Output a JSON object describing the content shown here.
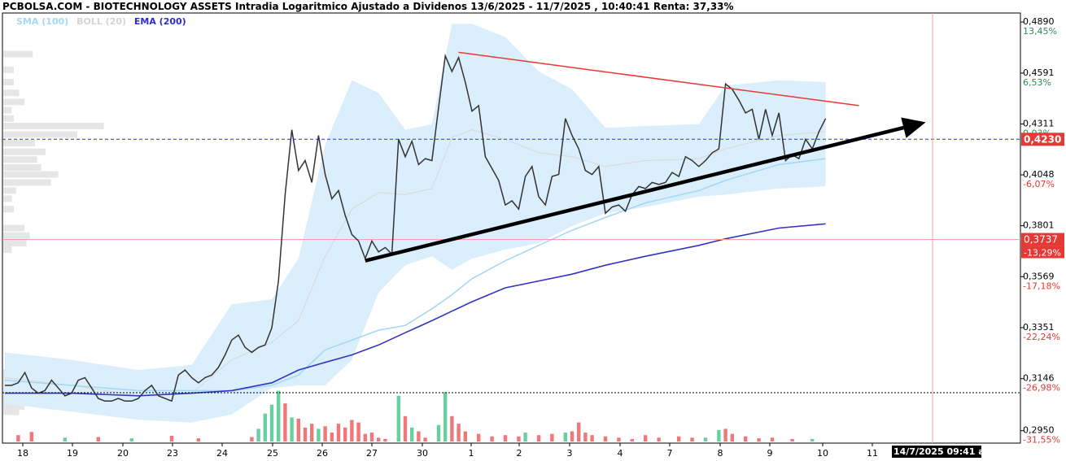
{
  "header": {
    "title": "PCBOLSA.COM - BIOTECHNOLOGY ASSETS Intradia Logaritmico Ajustado a Dividenos 13/6/2025 - 11/7/2025 , 10:40:41 Renta: 37,33%",
    "legend": [
      {
        "label": "SMA (100)",
        "color": "#a5d8f3"
      },
      {
        "label": "BOLL (20)",
        "color": "#d4d4d4"
      },
      {
        "label": "EMA (200)",
        "color": "#2e2ec8"
      }
    ]
  },
  "footer": {
    "date_tag": "14/7/2025 09:41 a"
  },
  "colors": {
    "price": "#333333",
    "bollinger_fill": "#dbeefb",
    "bollinger_mid": "#d8d8d8",
    "sma": "#a5d8f3",
    "ema": "#3434c4",
    "up_volume": "#66d19e",
    "down_volume": "#f07878",
    "resistance": "#e53935",
    "support": "#000000",
    "current_line": "#2030ff",
    "ref_line": "#f4a0a0"
  },
  "chart_data": {
    "type": "line",
    "scale": "log",
    "ylim": [
      0.2905,
      0.4945
    ],
    "x_tick_labels": [
      "18",
      "19",
      "20",
      "23",
      "24",
      "25",
      "26",
      "27",
      "30",
      "1",
      "2",
      "3",
      "4",
      "7",
      "8",
      "9",
      "10",
      "11"
    ],
    "y_tick_labels": [
      {
        "value": 0.489,
        "label": "0,4890",
        "pct": "13,45%",
        "pct_color": "#2e8b57"
      },
      {
        "value": 0.4591,
        "label": "0,4591",
        "pct": "6,53%",
        "pct_color": "#2e8b57"
      },
      {
        "value": 0.4311,
        "label": "0,4311",
        "pct": "0,03%",
        "pct_color": "#2e8b57"
      },
      {
        "value": 0.4048,
        "label": "0,4048",
        "pct": "-6,07%",
        "pct_color": "#e53935"
      },
      {
        "value": 0.3801,
        "label": "0,3801",
        "pct": "",
        "pct_color": "#e53935"
      },
      {
        "value": 0.3569,
        "label": "0,3569",
        "pct": "-17,18%",
        "pct_color": "#e53935"
      },
      {
        "value": 0.3351,
        "label": "0,3351",
        "pct": "-22,24%",
        "pct_color": "#e53935"
      },
      {
        "value": 0.3146,
        "label": "0,3146",
        "pct": "-26,98%",
        "pct_color": "#e53935"
      },
      {
        "value": 0.295,
        "label": "0,2950",
        "pct": "-31,55%",
        "pct_color": "#e53935"
      }
    ],
    "current_price": {
      "value": 0.423,
      "label": "0,4230"
    },
    "reference_price": {
      "value": 0.3737,
      "label": "0,3737",
      "pct": "-13,29%"
    },
    "price_series": [
      [
        0,
        0.312
      ],
      [
        1,
        0.312
      ],
      [
        2,
        0.313
      ],
      [
        3,
        0.317
      ],
      [
        4,
        0.311
      ],
      [
        5,
        0.309
      ],
      [
        6,
        0.31
      ],
      [
        7,
        0.314
      ],
      [
        8,
        0.311
      ],
      [
        9,
        0.308
      ],
      [
        10,
        0.309
      ],
      [
        11,
        0.314
      ],
      [
        12,
        0.315
      ],
      [
        13,
        0.311
      ],
      [
        14,
        0.307
      ],
      [
        15,
        0.306
      ],
      [
        16,
        0.306
      ],
      [
        17,
        0.307
      ],
      [
        18,
        0.306
      ],
      [
        19,
        0.306
      ],
      [
        20,
        0.307
      ],
      [
        21,
        0.31
      ],
      [
        22,
        0.312
      ],
      [
        23,
        0.308
      ],
      [
        24,
        0.307
      ],
      [
        25,
        0.306
      ],
      [
        26,
        0.316
      ],
      [
        27,
        0.318
      ],
      [
        28,
        0.315
      ],
      [
        29,
        0.313
      ],
      [
        30,
        0.315
      ],
      [
        31,
        0.316
      ],
      [
        32,
        0.319
      ],
      [
        33,
        0.324
      ],
      [
        34,
        0.33
      ],
      [
        35,
        0.332
      ],
      [
        36,
        0.327
      ],
      [
        37,
        0.325
      ],
      [
        38,
        0.327
      ],
      [
        39,
        0.328
      ],
      [
        40,
        0.335
      ],
      [
        41,
        0.355
      ],
      [
        42,
        0.395
      ],
      [
        43,
        0.428
      ],
      [
        44,
        0.407
      ],
      [
        45,
        0.412
      ],
      [
        46,
        0.401
      ],
      [
        47,
        0.425
      ],
      [
        48,
        0.405
      ],
      [
        49,
        0.393
      ],
      [
        50,
        0.397
      ],
      [
        51,
        0.385
      ],
      [
        52,
        0.376
      ],
      [
        53,
        0.373
      ],
      [
        54,
        0.365
      ],
      [
        55,
        0.373
      ],
      [
        56,
        0.368
      ],
      [
        57,
        0.37
      ],
      [
        58,
        0.367
      ],
      [
        59,
        0.423
      ],
      [
        60,
        0.414
      ],
      [
        61,
        0.422
      ],
      [
        62,
        0.41
      ],
      [
        63,
        0.413
      ],
      [
        64,
        0.412
      ],
      [
        65,
        0.44
      ],
      [
        66,
        0.469
      ],
      [
        67,
        0.46
      ],
      [
        68,
        0.468
      ],
      [
        69,
        0.454
      ],
      [
        70,
        0.438
      ],
      [
        71,
        0.441
      ],
      [
        72,
        0.414
      ],
      [
        73,
        0.408
      ],
      [
        74,
        0.402
      ],
      [
        75,
        0.39
      ],
      [
        76,
        0.392
      ],
      [
        77,
        0.388
      ],
      [
        78,
        0.404
      ],
      [
        79,
        0.409
      ],
      [
        80,
        0.394
      ],
      [
        81,
        0.39
      ],
      [
        82,
        0.404
      ],
      [
        83,
        0.405
      ],
      [
        84,
        0.434
      ],
      [
        85,
        0.425
      ],
      [
        86,
        0.418
      ],
      [
        87,
        0.407
      ],
      [
        88,
        0.405
      ],
      [
        89,
        0.409
      ],
      [
        90,
        0.386
      ],
      [
        91,
        0.389
      ],
      [
        92,
        0.39
      ],
      [
        93,
        0.387
      ],
      [
        94,
        0.395
      ],
      [
        95,
        0.399
      ],
      [
        96,
        0.398
      ],
      [
        97,
        0.401
      ],
      [
        98,
        0.4
      ],
      [
        99,
        0.401
      ],
      [
        100,
        0.406
      ],
      [
        101,
        0.404
      ],
      [
        102,
        0.414
      ],
      [
        103,
        0.412
      ],
      [
        104,
        0.409
      ],
      [
        105,
        0.412
      ],
      [
        106,
        0.416
      ],
      [
        107,
        0.418
      ],
      [
        108,
        0.453
      ],
      [
        109,
        0.45
      ],
      [
        110,
        0.444
      ],
      [
        111,
        0.437
      ],
      [
        112,
        0.439
      ],
      [
        113,
        0.423
      ],
      [
        114,
        0.439
      ],
      [
        115,
        0.425
      ],
      [
        116,
        0.437
      ],
      [
        117,
        0.412
      ],
      [
        118,
        0.415
      ],
      [
        119,
        0.413
      ],
      [
        120,
        0.423
      ],
      [
        121,
        0.418
      ],
      [
        122,
        0.427
      ],
      [
        123,
        0.434
      ]
    ],
    "boll_upper": [
      [
        0,
        0.325
      ],
      [
        10,
        0.322
      ],
      [
        20,
        0.318
      ],
      [
        28,
        0.32
      ],
      [
        34,
        0.345
      ],
      [
        40,
        0.347
      ],
      [
        44,
        0.365
      ],
      [
        48,
        0.42
      ],
      [
        52,
        0.455
      ],
      [
        56,
        0.448
      ],
      [
        60,
        0.428
      ],
      [
        64,
        0.431
      ],
      [
        67,
        0.488
      ],
      [
        70,
        0.488
      ],
      [
        75,
        0.48
      ],
      [
        80,
        0.46
      ],
      [
        85,
        0.45
      ],
      [
        90,
        0.429
      ],
      [
        96,
        0.43
      ],
      [
        104,
        0.431
      ],
      [
        108,
        0.452
      ],
      [
        116,
        0.455
      ],
      [
        123,
        0.454
      ]
    ],
    "boll_lower": [
      [
        0,
        0.305
      ],
      [
        10,
        0.302
      ],
      [
        20,
        0.299
      ],
      [
        28,
        0.298
      ],
      [
        34,
        0.301
      ],
      [
        40,
        0.311
      ],
      [
        44,
        0.312
      ],
      [
        48,
        0.312
      ],
      [
        52,
        0.322
      ],
      [
        56,
        0.35
      ],
      [
        60,
        0.362
      ],
      [
        64,
        0.366
      ],
      [
        67,
        0.36
      ],
      [
        70,
        0.365
      ],
      [
        75,
        0.369
      ],
      [
        80,
        0.372
      ],
      [
        85,
        0.38
      ],
      [
        90,
        0.386
      ],
      [
        96,
        0.389
      ],
      [
        104,
        0.394
      ],
      [
        108,
        0.395
      ],
      [
        116,
        0.398
      ],
      [
        123,
        0.399
      ]
    ],
    "boll_mid": [
      [
        0,
        0.315
      ],
      [
        10,
        0.312
      ],
      [
        20,
        0.308
      ],
      [
        28,
        0.309
      ],
      [
        34,
        0.322
      ],
      [
        40,
        0.329
      ],
      [
        44,
        0.338
      ],
      [
        48,
        0.366
      ],
      [
        52,
        0.388
      ],
      [
        56,
        0.396
      ],
      [
        60,
        0.395
      ],
      [
        64,
        0.398
      ],
      [
        67,
        0.424
      ],
      [
        70,
        0.428
      ],
      [
        75,
        0.423
      ],
      [
        80,
        0.416
      ],
      [
        85,
        0.414
      ],
      [
        90,
        0.409
      ],
      [
        96,
        0.412
      ],
      [
        104,
        0.413
      ],
      [
        108,
        0.418
      ],
      [
        116,
        0.425
      ],
      [
        123,
        0.427
      ]
    ],
    "sma_100": [
      [
        0,
        0.314
      ],
      [
        10,
        0.312
      ],
      [
        20,
        0.31
      ],
      [
        28,
        0.31
      ],
      [
        34,
        0.31
      ],
      [
        40,
        0.312
      ],
      [
        44,
        0.316
      ],
      [
        48,
        0.326
      ],
      [
        52,
        0.33
      ],
      [
        56,
        0.334
      ],
      [
        60,
        0.336
      ],
      [
        64,
        0.343
      ],
      [
        67,
        0.349
      ],
      [
        70,
        0.356
      ],
      [
        75,
        0.364
      ],
      [
        80,
        0.371
      ],
      [
        85,
        0.378
      ],
      [
        90,
        0.384
      ],
      [
        96,
        0.391
      ],
      [
        104,
        0.397
      ],
      [
        108,
        0.402
      ],
      [
        116,
        0.41
      ],
      [
        123,
        0.413
      ]
    ],
    "ema_200": [
      [
        0,
        0.309
      ],
      [
        10,
        0.309
      ],
      [
        20,
        0.308
      ],
      [
        28,
        0.309
      ],
      [
        34,
        0.31
      ],
      [
        40,
        0.313
      ],
      [
        44,
        0.318
      ],
      [
        48,
        0.321
      ],
      [
        52,
        0.324
      ],
      [
        56,
        0.328
      ],
      [
        60,
        0.333
      ],
      [
        64,
        0.338
      ],
      [
        67,
        0.342
      ],
      [
        70,
        0.346
      ],
      [
        75,
        0.352
      ],
      [
        80,
        0.355
      ],
      [
        85,
        0.358
      ],
      [
        90,
        0.362
      ],
      [
        96,
        0.366
      ],
      [
        104,
        0.371
      ],
      [
        108,
        0.374
      ],
      [
        116,
        0.379
      ],
      [
        123,
        0.381
      ]
    ],
    "resistance_line": {
      "from": [
        68,
        0.471
      ],
      "to": [
        128,
        0.441
      ]
    },
    "support_line": {
      "from": [
        54,
        0.364
      ],
      "to": [
        138,
        0.432
      ]
    },
    "volume": [
      {
        "i": 2,
        "v": 0.1,
        "d": "down"
      },
      {
        "i": 4,
        "v": 0.15,
        "d": "down"
      },
      {
        "i": 9,
        "v": 0.06,
        "d": "up"
      },
      {
        "i": 14,
        "v": 0.07,
        "d": "down"
      },
      {
        "i": 19,
        "v": 0.05,
        "d": "up"
      },
      {
        "i": 25,
        "v": 0.09,
        "d": "down"
      },
      {
        "i": 29,
        "v": 0.05,
        "d": "down"
      },
      {
        "i": 37,
        "v": 0.07,
        "d": "down"
      },
      {
        "i": 38,
        "v": 0.2,
        "d": "up"
      },
      {
        "i": 39,
        "v": 0.44,
        "d": "up"
      },
      {
        "i": 40,
        "v": 0.58,
        "d": "up"
      },
      {
        "i": 41,
        "v": 0.8,
        "d": "up"
      },
      {
        "i": 42,
        "v": 0.6,
        "d": "down"
      },
      {
        "i": 43,
        "v": 0.38,
        "d": "up"
      },
      {
        "i": 44,
        "v": 0.36,
        "d": "down"
      },
      {
        "i": 45,
        "v": 0.22,
        "d": "down"
      },
      {
        "i": 46,
        "v": 0.28,
        "d": "down"
      },
      {
        "i": 47,
        "v": 0.2,
        "d": "up"
      },
      {
        "i": 48,
        "v": 0.24,
        "d": "down"
      },
      {
        "i": 49,
        "v": 0.14,
        "d": "down"
      },
      {
        "i": 50,
        "v": 0.28,
        "d": "down"
      },
      {
        "i": 51,
        "v": 0.22,
        "d": "down"
      },
      {
        "i": 52,
        "v": 0.34,
        "d": "down"
      },
      {
        "i": 53,
        "v": 0.3,
        "d": "down"
      },
      {
        "i": 54,
        "v": 0.12,
        "d": "down"
      },
      {
        "i": 55,
        "v": 0.14,
        "d": "down"
      },
      {
        "i": 56,
        "v": 0.06,
        "d": "down"
      },
      {
        "i": 57,
        "v": 0.04,
        "d": "down"
      },
      {
        "i": 59,
        "v": 0.72,
        "d": "up"
      },
      {
        "i": 60,
        "v": 0.4,
        "d": "down"
      },
      {
        "i": 61,
        "v": 0.22,
        "d": "up"
      },
      {
        "i": 62,
        "v": 0.16,
        "d": "down"
      },
      {
        "i": 63,
        "v": 0.06,
        "d": "down"
      },
      {
        "i": 65,
        "v": 0.26,
        "d": "up"
      },
      {
        "i": 66,
        "v": 0.78,
        "d": "up"
      },
      {
        "i": 67,
        "v": 0.4,
        "d": "down"
      },
      {
        "i": 68,
        "v": 0.28,
        "d": "down"
      },
      {
        "i": 69,
        "v": 0.16,
        "d": "down"
      },
      {
        "i": 71,
        "v": 0.12,
        "d": "down"
      },
      {
        "i": 73,
        "v": 0.08,
        "d": "down"
      },
      {
        "i": 75,
        "v": 0.1,
        "d": "down"
      },
      {
        "i": 77,
        "v": 0.08,
        "d": "down"
      },
      {
        "i": 78,
        "v": 0.14,
        "d": "up"
      },
      {
        "i": 80,
        "v": 0.1,
        "d": "down"
      },
      {
        "i": 82,
        "v": 0.12,
        "d": "down"
      },
      {
        "i": 84,
        "v": 0.14,
        "d": "up"
      },
      {
        "i": 85,
        "v": 0.16,
        "d": "down"
      },
      {
        "i": 86,
        "v": 0.3,
        "d": "down"
      },
      {
        "i": 87,
        "v": 0.14,
        "d": "down"
      },
      {
        "i": 88,
        "v": 0.1,
        "d": "down"
      },
      {
        "i": 90,
        "v": 0.08,
        "d": "down"
      },
      {
        "i": 92,
        "v": 0.06,
        "d": "down"
      },
      {
        "i": 94,
        "v": 0.04,
        "d": "down"
      },
      {
        "i": 96,
        "v": 0.1,
        "d": "down"
      },
      {
        "i": 98,
        "v": 0.06,
        "d": "down"
      },
      {
        "i": 101,
        "v": 0.08,
        "d": "down"
      },
      {
        "i": 103,
        "v": 0.06,
        "d": "down"
      },
      {
        "i": 105,
        "v": 0.06,
        "d": "up"
      },
      {
        "i": 107,
        "v": 0.18,
        "d": "up"
      },
      {
        "i": 108,
        "v": 0.2,
        "d": "down"
      },
      {
        "i": 109,
        "v": 0.12,
        "d": "down"
      },
      {
        "i": 111,
        "v": 0.08,
        "d": "down"
      },
      {
        "i": 113,
        "v": 0.05,
        "d": "down"
      },
      {
        "i": 115,
        "v": 0.06,
        "d": "down"
      },
      {
        "i": 118,
        "v": 0.04,
        "d": "down"
      },
      {
        "i": 121,
        "v": 0.04,
        "d": "up"
      }
    ],
    "volume_profile": [
      {
        "price": 0.47,
        "w": 0.28
      },
      {
        "price": 0.461,
        "w": 0.1
      },
      {
        "price": 0.454,
        "w": 0.1
      },
      {
        "price": 0.448,
        "w": 0.15
      },
      {
        "price": 0.443,
        "w": 0.2
      },
      {
        "price": 0.4385,
        "w": 0.08
      },
      {
        "price": 0.434,
        "w": 0.1
      },
      {
        "price": 0.43,
        "w": 0.95
      },
      {
        "price": 0.4255,
        "w": 0.7
      },
      {
        "price": 0.421,
        "w": 0.3
      },
      {
        "price": 0.4165,
        "w": 0.4
      },
      {
        "price": 0.4125,
        "w": 0.32
      },
      {
        "price": 0.4085,
        "w": 0.36
      },
      {
        "price": 0.405,
        "w": 0.52
      },
      {
        "price": 0.401,
        "w": 0.45
      },
      {
        "price": 0.397,
        "w": 0.12
      },
      {
        "price": 0.393,
        "w": 0.08
      },
      {
        "price": 0.388,
        "w": 0.1
      },
      {
        "price": 0.379,
        "w": 0.2
      },
      {
        "price": 0.3755,
        "w": 0.25
      },
      {
        "price": 0.372,
        "w": 0.22
      },
      {
        "price": 0.369,
        "w": 0.08
      },
      {
        "price": 0.317,
        "w": 0.1
      },
      {
        "price": 0.315,
        "w": 0.35
      },
      {
        "price": 0.313,
        "w": 0.4
      },
      {
        "price": 0.311,
        "w": 0.55
      },
      {
        "price": 0.3095,
        "w": 0.58
      },
      {
        "price": 0.308,
        "w": 0.5
      },
      {
        "price": 0.306,
        "w": 0.3
      },
      {
        "price": 0.304,
        "w": 0.2
      },
      {
        "price": 0.302,
        "w": 0.15
      }
    ]
  }
}
